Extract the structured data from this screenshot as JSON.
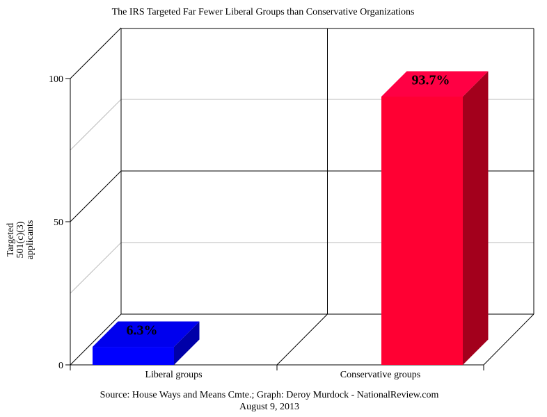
{
  "chart_data": {
    "type": "bar",
    "title": "The IRS Targeted Far Fewer Liberal Groups than Conservative Organizations",
    "ylabel": "Targeted 501(c)(3) applicants",
    "ylabel_lines": [
      "Targeted",
      "501(c)(3)",
      "applicants"
    ],
    "categories": [
      "Liberal groups",
      "Conservative groups"
    ],
    "values": [
      6.3,
      93.7
    ],
    "data_labels": [
      "6.3%",
      "93.7%"
    ],
    "yticks": [
      0,
      50,
      100
    ],
    "ylim": [
      0,
      100
    ],
    "grid": true,
    "bar_colors": [
      "#0000ff",
      "#ff0033"
    ],
    "source": "Source: House Ways and Means Cmte.; Graph: Deroy Murdock - NationalReview.com",
    "date": "August 9, 2013"
  }
}
